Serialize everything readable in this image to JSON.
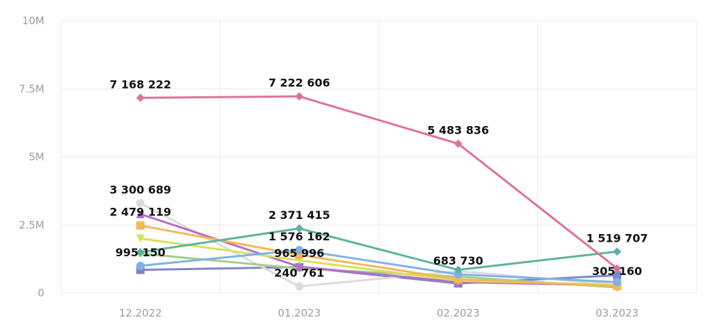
{
  "chart_data": {
    "type": "line",
    "categories": [
      "12.2022",
      "01.2023",
      "02.2023",
      "03.2023"
    ],
    "ylim": [
      0,
      10000000
    ],
    "y_ticks": [
      0,
      2500000,
      5000000,
      7500000,
      10000000
    ],
    "y_tick_labels": [
      "0",
      "2.5M",
      "5M",
      "7.5M",
      "10M"
    ],
    "grid": true,
    "series": [
      {
        "color": "#e0709a",
        "marker": "diamond",
        "values": [
          7168222,
          7222606,
          5483836,
          900000
        ]
      },
      {
        "color": "#5ab3a0",
        "marker": "diamond",
        "values": [
          1500000,
          2371415,
          850000,
          1519707
        ]
      },
      {
        "color": "#7fb3e6",
        "marker": "circle",
        "values": [
          1000000,
          1576162,
          683730,
          400000
        ]
      },
      {
        "color": "#f5b755",
        "marker": "square",
        "values": [
          2479119,
          1400000,
          500000,
          250000
        ]
      },
      {
        "color": "#d6e25a",
        "marker": "triangle-down",
        "values": [
          2000000,
          1200000,
          450000,
          300000
        ]
      },
      {
        "color": "#b36fc8",
        "marker": "triangle",
        "values": [
          2900000,
          965996,
          400000,
          280000
        ]
      },
      {
        "color": "#a3cf88",
        "marker": "diamond",
        "values": [
          1450000,
          900000,
          600000,
          200000
        ]
      },
      {
        "color": "#dcdcdc",
        "marker": "circle",
        "values": [
          3300689,
          240761,
          800000,
          305160
        ]
      },
      {
        "color": "#7f86c6",
        "marker": "square",
        "values": [
          850000,
          950000,
          350000,
          650000
        ]
      }
    ],
    "labels": [
      {
        "text": "7 168 222",
        "category": 0,
        "value": 7168222
      },
      {
        "text": "7 222 606",
        "category": 1,
        "value": 7222606
      },
      {
        "text": "5 483 836",
        "category": 2,
        "value": 5483836
      },
      {
        "text": "3 300 689",
        "category": 0,
        "value": 3300689
      },
      {
        "text": "2 479 119",
        "category": 0,
        "value": 2479119
      },
      {
        "text": "995 150",
        "category": 0,
        "value": 995150
      },
      {
        "text": "2 371 415",
        "category": 1,
        "value": 2371415
      },
      {
        "text": "1 576 162",
        "category": 1,
        "value": 1576162
      },
      {
        "text": "965 996",
        "category": 1,
        "value": 965996
      },
      {
        "text": "240 761",
        "category": 1,
        "value": 240761
      },
      {
        "text": "683 730",
        "category": 2,
        "value": 683730
      },
      {
        "text": "1 519 707",
        "category": 3,
        "value": 1519707
      },
      {
        "text": "305 160",
        "category": 3,
        "value": 305160
      }
    ]
  }
}
